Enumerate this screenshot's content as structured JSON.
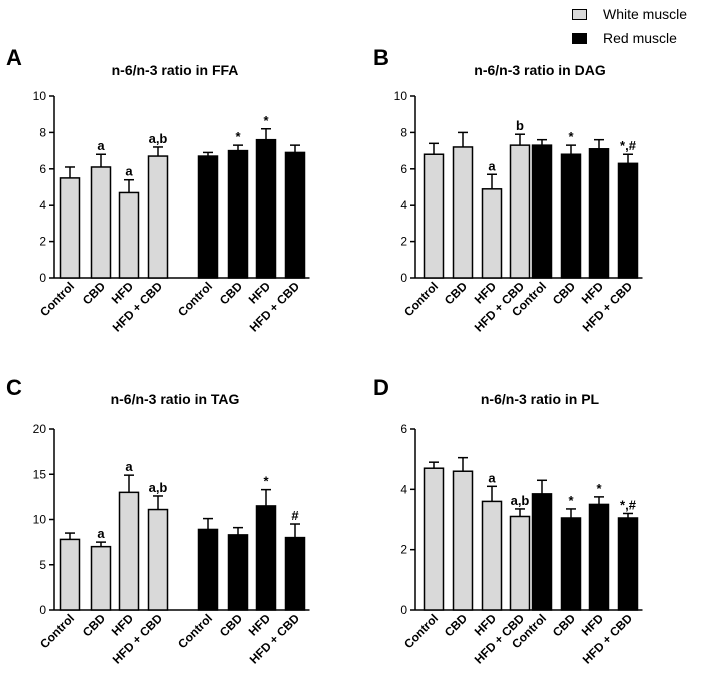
{
  "legend": {
    "white": {
      "label": "White muscle",
      "color": "#d9d9d9"
    },
    "red": {
      "label": "Red muscle",
      "color": "#000000"
    }
  },
  "chart_data": [
    {
      "type": "bar",
      "panel": "A",
      "title": "n-6/n-3 ratio in FFA",
      "ylim": [
        0,
        10
      ],
      "yticks": [
        0,
        2,
        4,
        6,
        8,
        10
      ],
      "categories": [
        "Control",
        "CBD",
        "HFD",
        "HFD + CBD"
      ],
      "series": [
        {
          "name": "White muscle",
          "values": [
            5.5,
            6.1,
            4.7,
            6.7
          ],
          "errors": [
            0.6,
            0.7,
            0.7,
            0.5
          ],
          "annotations": [
            "",
            "a",
            "a",
            "a,b"
          ]
        },
        {
          "name": "Red muscle",
          "values": [
            6.7,
            7.0,
            7.6,
            6.9
          ],
          "errors": [
            0.2,
            0.3,
            0.6,
            0.4
          ],
          "annotations": [
            "",
            "*",
            "*",
            ""
          ]
        }
      ]
    },
    {
      "type": "bar",
      "panel": "B",
      "title": "n-6/n-3 ratio in DAG",
      "ylim": [
        0,
        10
      ],
      "yticks": [
        0,
        2,
        4,
        6,
        8,
        10
      ],
      "categories": [
        "Control",
        "CBD",
        "HFD",
        "HFD + CBD"
      ],
      "series": [
        {
          "name": "White muscle",
          "values": [
            6.8,
            7.2,
            4.9,
            7.3
          ],
          "errors": [
            0.6,
            0.8,
            0.8,
            0.6
          ],
          "annotations": [
            "",
            "",
            "a",
            "b"
          ]
        },
        {
          "name": "Red muscle",
          "values": [
            7.3,
            6.8,
            7.1,
            6.3
          ],
          "errors": [
            0.3,
            0.5,
            0.5,
            0.5
          ],
          "annotations": [
            "",
            "*",
            "",
            "*,#"
          ]
        }
      ]
    },
    {
      "type": "bar",
      "panel": "C",
      "title": "n-6/n-3 ratio in TAG",
      "ylim": [
        0,
        20
      ],
      "yticks": [
        0,
        5,
        10,
        15,
        20
      ],
      "categories": [
        "Control",
        "CBD",
        "HFD",
        "HFD + CBD"
      ],
      "series": [
        {
          "name": "White muscle",
          "values": [
            7.8,
            7.0,
            13.0,
            11.1
          ],
          "errors": [
            0.7,
            0.5,
            1.9,
            1.5
          ],
          "annotations": [
            "",
            "a",
            "a",
            "a,b"
          ]
        },
        {
          "name": "Red muscle",
          "values": [
            8.9,
            8.3,
            11.5,
            8.0
          ],
          "errors": [
            1.2,
            0.8,
            1.8,
            1.5
          ],
          "annotations": [
            "",
            "",
            "*",
            "#"
          ]
        }
      ]
    },
    {
      "type": "bar",
      "panel": "D",
      "title": "n-6/n-3 ratio in PL",
      "ylim": [
        0,
        6
      ],
      "yticks": [
        0,
        2,
        4,
        6
      ],
      "categories": [
        "Control",
        "CBD",
        "HFD",
        "HFD + CBD"
      ],
      "series": [
        {
          "name": "White muscle",
          "values": [
            4.7,
            4.6,
            3.6,
            3.1
          ],
          "errors": [
            0.2,
            0.45,
            0.5,
            0.25
          ],
          "annotations": [
            "",
            "",
            "a",
            "a,b"
          ]
        },
        {
          "name": "Red muscle",
          "values": [
            3.85,
            3.05,
            3.5,
            3.05
          ],
          "errors": [
            0.45,
            0.3,
            0.25,
            0.15
          ],
          "annotations": [
            "",
            "*",
            "*",
            "*,#"
          ]
        }
      ]
    }
  ]
}
